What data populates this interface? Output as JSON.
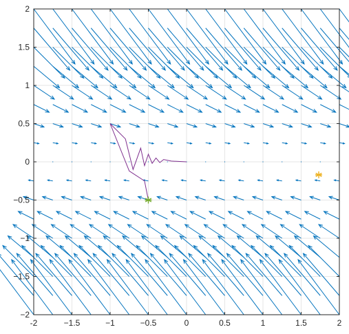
{
  "chart_data": {
    "type": "quiver",
    "title": "",
    "xlabel": "",
    "ylabel": "",
    "xlim": [
      -2,
      2
    ],
    "ylim": [
      -2,
      2
    ],
    "grid": true,
    "xticks": [
      -2,
      -1.5,
      -1,
      -0.5,
      0,
      0.5,
      1,
      1.5,
      2
    ],
    "yticks": [
      -2,
      -1.5,
      -1,
      -0.5,
      0,
      0.5,
      1,
      1.5,
      2
    ],
    "xtick_labels": [
      "-2",
      "−1.5",
      "−1",
      "−0.5",
      "0",
      "0.5",
      "1",
      "1.5",
      "2"
    ],
    "ytick_labels": [
      "−2",
      "−1.5",
      "−1",
      "−0.5",
      "0",
      "0.5",
      "1",
      "1.5",
      "2"
    ],
    "field": {
      "grid_x_range": [
        -2,
        2
      ],
      "grid_y_range": [
        -2,
        2
      ],
      "grid_step": 0.25,
      "vector_rule": "u = 0.27*y, v = -y*|y|*0.18 (approx. from arrows)",
      "color": "#0072BD"
    },
    "series": [
      {
        "type": "line",
        "color": "#7E2F8E",
        "x": [
          0,
          -0.2,
          -0.3,
          -0.35,
          -0.4,
          -0.45,
          -0.5,
          -0.55,
          -0.6,
          -0.7,
          -0.8,
          -1.0,
          -0.75,
          -0.55,
          -0.5
        ],
        "y": [
          0,
          0.01,
          0.03,
          -0.01,
          0.05,
          -0.02,
          0.1,
          -0.05,
          0.18,
          -0.1,
          0.3,
          0.5,
          -0.12,
          -0.25,
          -0.5
        ]
      }
    ],
    "markers": [
      {
        "x": -0.5,
        "y": -0.5,
        "symbol": "*",
        "color": "#77AC30"
      },
      {
        "x": 1.73,
        "y": -0.17,
        "symbol": "*",
        "color": "#EDB120"
      }
    ]
  }
}
